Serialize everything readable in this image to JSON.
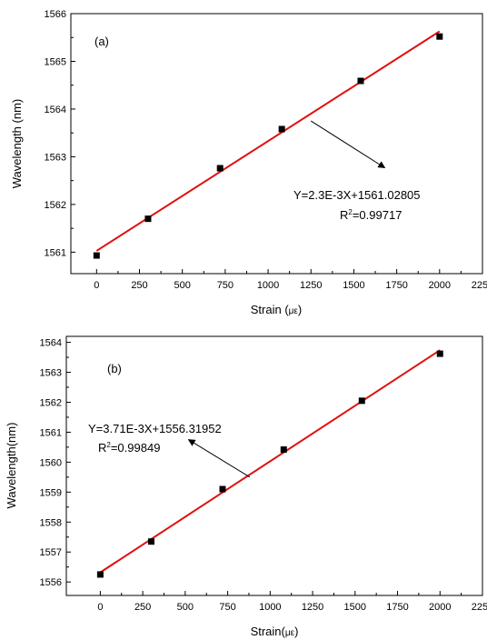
{
  "chart_data": [
    {
      "type": "scatter",
      "panel_label": "(a)",
      "xlabel_text": "Strain (",
      "xlabel_unit": "με",
      "xlabel_close": ")",
      "ylabel": "Wavelength (nm)",
      "xlim": [
        -150,
        2250
      ],
      "ylim": [
        1560.55,
        1566
      ],
      "xticks": [
        0,
        250,
        500,
        750,
        1000,
        1250,
        1500,
        1750,
        2000,
        2250
      ],
      "yticks": [
        1561,
        1562,
        1563,
        1564,
        1565,
        1566
      ],
      "series": [
        {
          "type": "scatter",
          "marker": "square",
          "color": "#000000",
          "x": [
            0,
            300,
            720,
            1080,
            1540,
            2000
          ],
          "y": [
            1560.93,
            1561.7,
            1562.76,
            1563.58,
            1564.59,
            1565.52
          ]
        },
        {
          "type": "line",
          "color": "#e01010",
          "x": [
            0,
            2000
          ],
          "y": [
            1561.02805,
            1565.62805
          ]
        }
      ],
      "equation": "Y=2.3E-3X+1561.02805",
      "r2_prefix": "R",
      "r2_sup": "2",
      "r2_value": "=0.99717",
      "annotation_arrow": {
        "from": [
          1250,
          1563.75
        ],
        "to": [
          1680,
          1562.77
        ]
      }
    },
    {
      "type": "scatter",
      "panel_label": "(b)",
      "xlabel_text": "Strain(",
      "xlabel_unit": "με",
      "xlabel_close": ")",
      "ylabel": "Wavelength(nm)",
      "xlim": [
        -200,
        2250
      ],
      "ylim": [
        1555.55,
        1564.2
      ],
      "xticks": [
        0,
        250,
        500,
        750,
        1000,
        1250,
        1500,
        1750,
        2000,
        2250
      ],
      "yticks": [
        1556,
        1557,
        1558,
        1559,
        1560,
        1561,
        1562,
        1563,
        1564
      ],
      "series": [
        {
          "type": "scatter",
          "marker": "square",
          "color": "#000000",
          "x": [
            0,
            300,
            720,
            1080,
            1540,
            2000
          ],
          "y": [
            1556.25,
            1557.35,
            1559.1,
            1560.42,
            1562.05,
            1563.62
          ]
        },
        {
          "type": "line",
          "color": "#e01010",
          "x": [
            0,
            2000
          ],
          "y": [
            1556.31952,
            1563.73952
          ]
        }
      ],
      "equation": "Y=3.71E-3X+1556.31952",
      "r2_prefix": "R",
      "r2_sup": "2",
      "r2_value": "=0.99849",
      "annotation_arrow": {
        "from": [
          880,
          1559.5
        ],
        "to": [
          520,
          1560.75
        ]
      }
    }
  ]
}
